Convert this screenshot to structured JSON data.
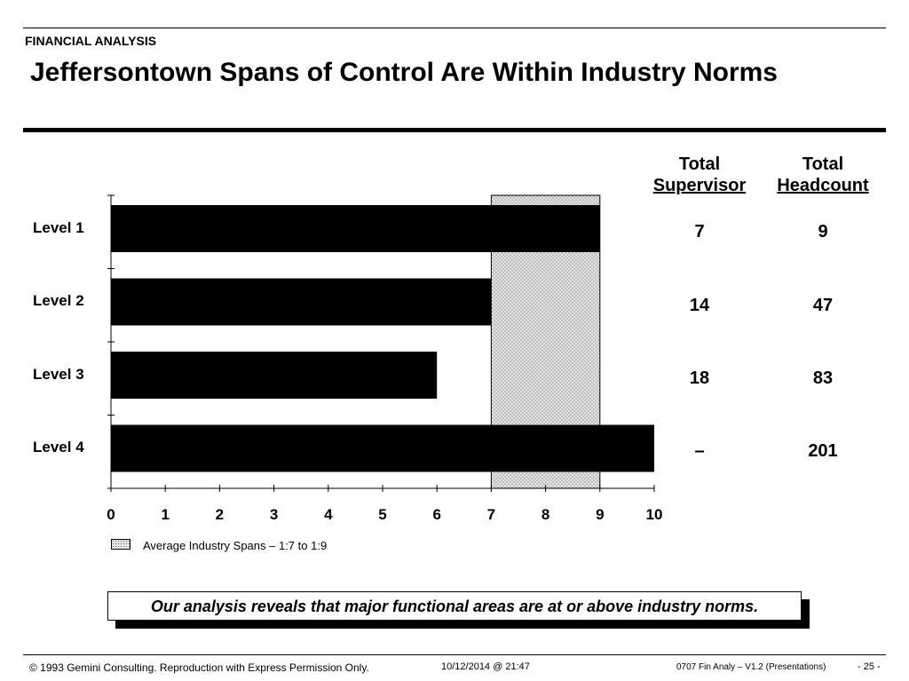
{
  "header": {
    "section": "FINANCIAL ANALYSIS",
    "title": "Jeffersontown Spans of Control Are Within Industry Norms"
  },
  "table": {
    "columns": [
      {
        "line1": "Total",
        "line2": "Supervisor"
      },
      {
        "line1": "Total",
        "line2": "Headcount"
      }
    ],
    "rows": [
      {
        "supervisor": "7",
        "headcount": "9"
      },
      {
        "supervisor": "14",
        "headcount": "47"
      },
      {
        "supervisor": "18",
        "headcount": "83"
      },
      {
        "supervisor": "–",
        "headcount": "201"
      }
    ]
  },
  "chart_data": {
    "type": "bar",
    "orientation": "horizontal",
    "categories": [
      "Level 1",
      "Level 2",
      "Level 3",
      "Level 4"
    ],
    "values": [
      9,
      7,
      6,
      10
    ],
    "xlim": [
      0,
      10
    ],
    "xticks": [
      "0",
      "1",
      "2",
      "3",
      "4",
      "5",
      "6",
      "7",
      "8",
      "9",
      "10"
    ],
    "bar_color": "#000000",
    "industry_band": {
      "from": 7,
      "to": 9,
      "fill": "dotted light gray"
    },
    "legend": {
      "label": "Average Industry Spans – 1:7 to 1:9",
      "placement": "bottom-left"
    },
    "title": "",
    "xlabel": "",
    "ylabel": ""
  },
  "callout": "Our analysis reveals that major functional areas are at or above industry  norms.",
  "footer": {
    "copyright": "© 1993 Gemini Consulting. Reproduction with Express Permission Only.",
    "datetime": "10/12/2014 @ 21:47",
    "doc": "0707 Fin Analy – V1.2 (Presentations)",
    "page": "- 25 -"
  }
}
